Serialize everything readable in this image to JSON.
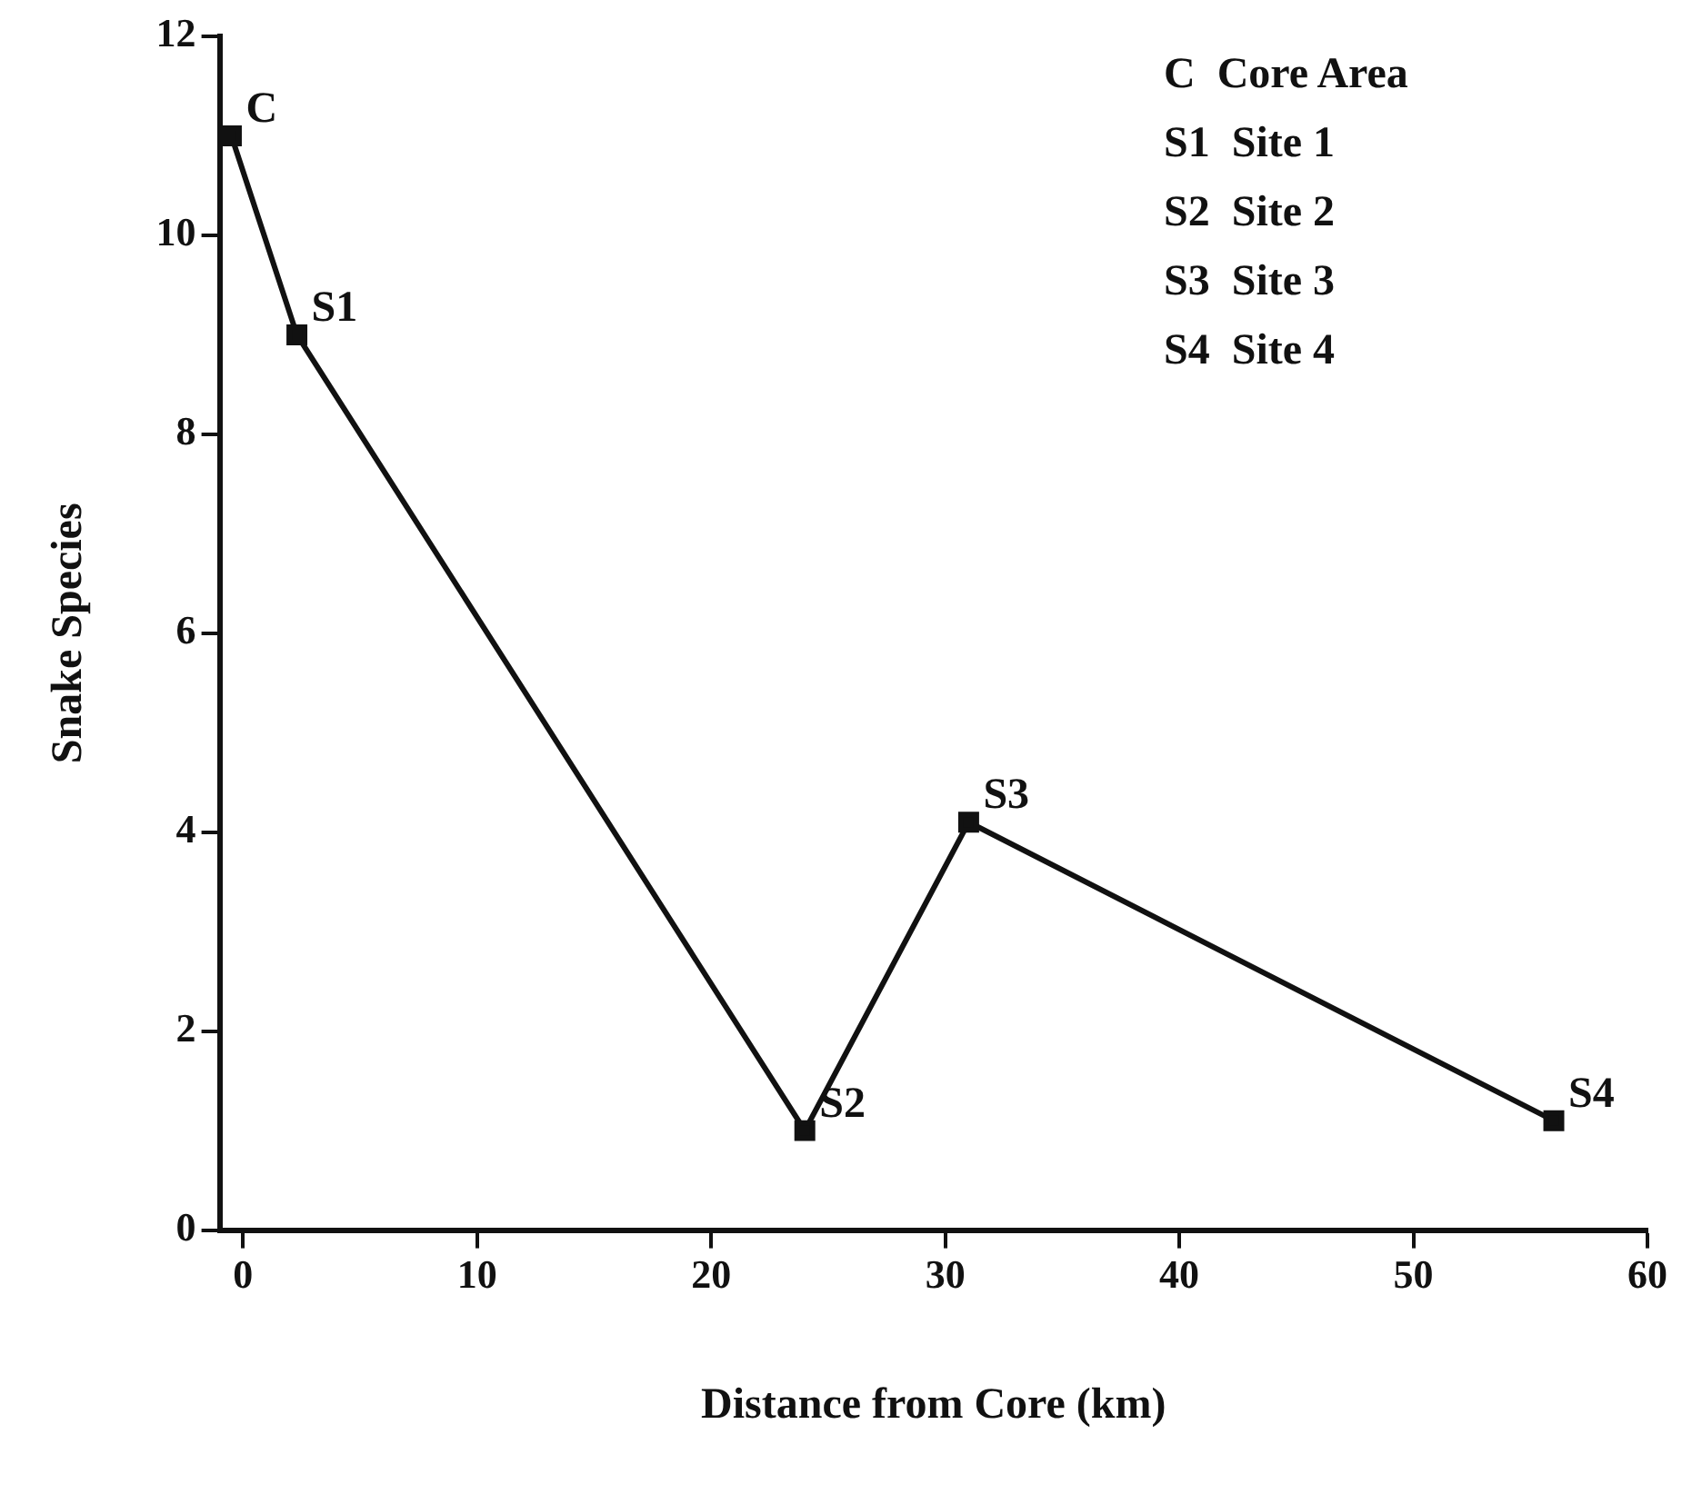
{
  "chart_data": {
    "type": "line",
    "xlabel": "Distance from Core (km)",
    "ylabel": "Snake Species",
    "x": [
      -0.5,
      2.3,
      24,
      31,
      56
    ],
    "series": [
      {
        "color": "#111111",
        "values": [
          11,
          9,
          1,
          4.1,
          1.1
        ]
      }
    ],
    "marker": "square",
    "line_style": "solid",
    "grid": false,
    "legend": false,
    "xlim": [
      -1,
      60
    ],
    "xticks": [
      0,
      10,
      20,
      30,
      40,
      50,
      60
    ],
    "ylim": [
      0,
      12
    ],
    "yticks": [
      0,
      2,
      4,
      6,
      8,
      10,
      12
    ],
    "annotations": [
      {
        "text": "C",
        "x": -0.5,
        "y": 11
      },
      {
        "text": "S1",
        "x": 2.3,
        "y": 9
      },
      {
        "text": "S2",
        "x": 24,
        "y": 1
      },
      {
        "text": "S3",
        "x": 31,
        "y": 4.1
      },
      {
        "text": "S4",
        "x": 56,
        "y": 1.1
      },
      "C  Core Area",
      "S1  Site 1",
      "S2  Site 2",
      "S3  Site 3",
      "S4  Site 4"
    ]
  }
}
